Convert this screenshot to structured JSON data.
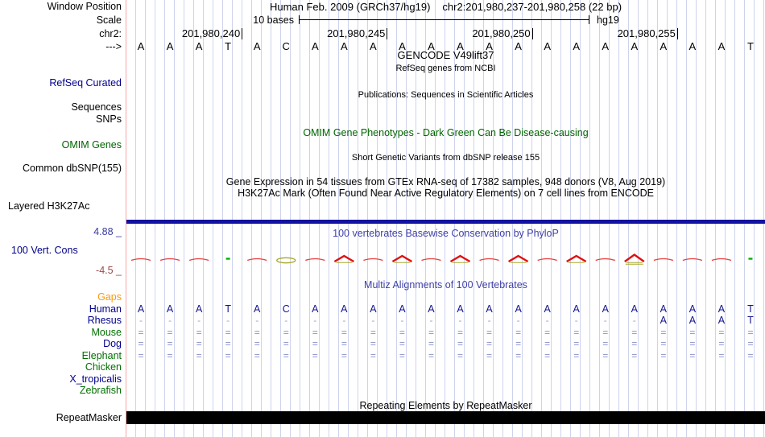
{
  "colors": {
    "grid_line": "#ced3ee",
    "label_divider": "#f7a8a8",
    "navy_label": "#00008b",
    "green_label": "#007000",
    "orange_label": "#ff9900",
    "title_blue": "#3f3fa8",
    "omim_green": "#006400",
    "scale_max_color": "#3b3ba0",
    "scale_min_color": "#a04848",
    "h3k27ac_bar": "#1212a0",
    "repeat_bar": "#000000",
    "alignment_mark": "#8a91c7",
    "multiz_letter": "#16168e",
    "conservation_red": "#e01010",
    "conservation_olive": "#a8a828",
    "conservation_green": "#00b400"
  },
  "header": {
    "assembly_title": "Human Feb. 2009 (GRCh37/hg19)",
    "position_range": "chr2:201,980,237-201,980,258 (22 bp)",
    "window_position_label": "Window Position",
    "scale_label": "Scale",
    "scale_value": "10 bases",
    "assembly_tag": "hg19",
    "chrom_label": "chr2:",
    "strand_arrow": "--->",
    "ruler_ticks": [
      {
        "label": "201,980,240",
        "base_index": 4
      },
      {
        "label": "201,980,245",
        "base_index": 9
      },
      {
        "label": "201,980,250",
        "base_index": 14
      },
      {
        "label": "201,980,255",
        "base_index": 19
      }
    ]
  },
  "sequence": {
    "bases": [
      "A",
      "A",
      "A",
      "T",
      "A",
      "C",
      "A",
      "A",
      "A",
      "A",
      "A",
      "A",
      "A",
      "A",
      "A",
      "A",
      "A",
      "A",
      "A",
      "A",
      "A",
      "T"
    ]
  },
  "tracks": {
    "gencode": {
      "title": "GENCODE V49lift37",
      "subtitle": "RefSeq genes from NCBI",
      "side_label": "RefSeq Curated"
    },
    "publications": {
      "title": "Publications: Sequences in Scientific Articles"
    },
    "sequences_side_label": "Sequences",
    "snps_side_label": "SNPs",
    "omim": {
      "title": "OMIM Gene Phenotypes - Dark Green Can Be Disease-causing",
      "side_label": "OMIM Genes"
    },
    "dbsnp": {
      "title": "Short Genetic Variants from dbSNP release 155",
      "side_label": "Common dbSNP(155)"
    },
    "gtex": {
      "title": "Gene Expression in 54 tissues from GTEx RNA-seq of 17382 samples, 948 donors (V8, Aug 2019)"
    },
    "h3k27ac": {
      "title": "H3K27Ac Mark (Often Found Near Active Regulatory Elements) on 7 cell lines from ENCODE",
      "side_label": "Layered H3K27Ac"
    },
    "phylop": {
      "title": "100 vertebrates Basewise Conservation by PhyloP",
      "side_label": "100 Vert. Cons",
      "scale_max": "4.88 _",
      "scale_min": "-4.5 _",
      "shapes": [
        "arc",
        "arc",
        "arc",
        "green",
        "arc",
        "ellipse",
        "arc",
        "peak",
        "arc",
        "peak",
        "arc",
        "peak",
        "arc",
        "peak",
        "arc",
        "peak",
        "arc",
        "peak2",
        "arc",
        "arc",
        "arc",
        "green"
      ]
    },
    "multiz": {
      "title": "Multiz Alignments of 100 Vertebrates",
      "rows": [
        {
          "label": "Gaps",
          "label_color": "#ff9900",
          "cells": [
            "",
            "",
            "",
            "",
            "",
            "",
            "",
            "",
            "",
            "",
            "",
            "",
            "",
            "",
            "",
            "",
            "",
            "",
            "",
            "",
            "",
            ""
          ]
        },
        {
          "label": "Human",
          "label_color": "#00008b",
          "cells": [
            "A",
            "A",
            "A",
            "T",
            "A",
            "C",
            "A",
            "A",
            "A",
            "A",
            "A",
            "A",
            "A",
            "A",
            "A",
            "A",
            "A",
            "A",
            "A",
            "A",
            "A",
            "T"
          ]
        },
        {
          "label": "Rhesus",
          "label_color": "#00008b",
          "cells": [
            "-",
            "-",
            "-",
            "-",
            "-",
            "-",
            "-",
            "-",
            "-",
            "-",
            "-",
            "-",
            "-",
            "-",
            "-",
            "-",
            "-",
            "-",
            "A",
            "A",
            "A",
            "T"
          ]
        },
        {
          "label": "Mouse",
          "label_color": "#007000",
          "cells": [
            "=",
            "=",
            "=",
            "=",
            "=",
            "=",
            "=",
            "=",
            "=",
            "=",
            "=",
            "=",
            "=",
            "=",
            "=",
            "=",
            "=",
            "=",
            "=",
            "=",
            "=",
            "="
          ]
        },
        {
          "label": "Dog",
          "label_color": "#00008b",
          "cells": [
            "=",
            "=",
            "=",
            "=",
            "=",
            "=",
            "=",
            "=",
            "=",
            "=",
            "=",
            "=",
            "=",
            "=",
            "=",
            "=",
            "=",
            "=",
            "=",
            "=",
            "=",
            "="
          ]
        },
        {
          "label": "Elephant",
          "label_color": "#007000",
          "cells": [
            "=",
            "=",
            "=",
            "=",
            "=",
            "=",
            "=",
            "=",
            "=",
            "=",
            "=",
            "=",
            "=",
            "=",
            "=",
            "=",
            "=",
            "=",
            "=",
            "=",
            "=",
            "="
          ]
        },
        {
          "label": "Chicken",
          "label_color": "#007000",
          "cells": [
            "",
            "",
            "",
            "",
            "",
            "",
            "",
            "",
            "",
            "",
            "",
            "",
            "",
            "",
            "",
            "",
            "",
            "",
            "",
            "",
            "",
            ""
          ]
        },
        {
          "label": "X_tropicalis",
          "label_color": "#00008b",
          "cells": [
            "",
            "",
            "",
            "",
            "",
            "",
            "",
            "",
            "",
            "",
            "",
            "",
            "",
            "",
            "",
            "",
            "",
            "",
            "",
            "",
            "",
            ""
          ]
        },
        {
          "label": "Zebrafish",
          "label_color": "#007000",
          "cells": [
            "",
            "",
            "",
            "",
            "",
            "",
            "",
            "",
            "",
            "",
            "",
            "",
            "",
            "",
            "",
            "",
            "",
            "",
            "",
            "",
            "",
            ""
          ]
        }
      ]
    },
    "repeatmasker": {
      "title": "Repeating Elements by RepeatMasker",
      "side_label": "RepeatMasker"
    }
  }
}
